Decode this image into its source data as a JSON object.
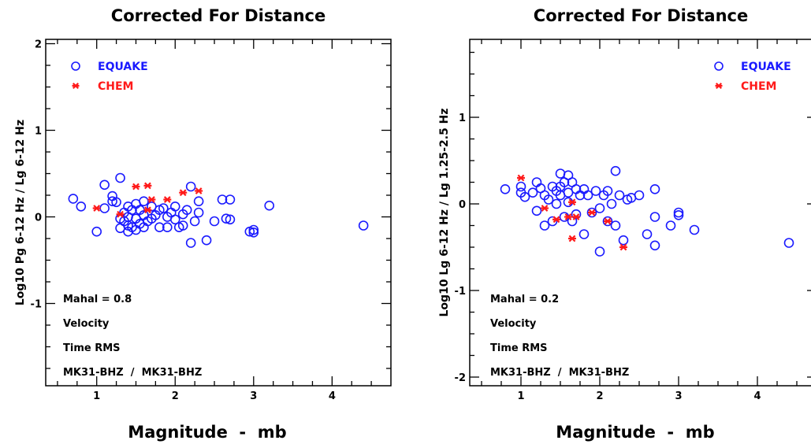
{
  "colors": {
    "equake": "#1a1aff",
    "chem": "#ff1a1a",
    "axis": "#000000"
  },
  "chart_data": [
    {
      "type": "scatter",
      "title": "Corrected For Distance",
      "xlabel": "Magnitude  -  mb",
      "ylabel": "Log10 Pg 6-12 Hz / Lg 6-12 Hz",
      "xlim": [
        0.35,
        4.75
      ],
      "ylim": [
        -1.95,
        2.05
      ],
      "xticks": [
        1,
        2,
        3,
        4
      ],
      "yticks": [
        -1,
        0,
        1,
        2
      ],
      "ytick_labels": [
        "-1",
        "0",
        "1",
        "2"
      ],
      "legend": [
        "EQUAKE",
        "CHEM"
      ],
      "legend_position": "top-left",
      "notes": [
        "Mahal = 0.8",
        "Velocity",
        "Time RMS",
        "MK31-BHZ  /  MK31-BHZ"
      ],
      "series": [
        {
          "name": "EQUAKE",
          "marker": "circle",
          "color": "#1a1aff",
          "points": [
            [
              0.7,
              0.21
            ],
            [
              0.8,
              0.12
            ],
            [
              1.0,
              -0.17
            ],
            [
              1.1,
              0.37
            ],
            [
              1.1,
              0.1
            ],
            [
              1.2,
              0.24
            ],
            [
              1.2,
              0.18
            ],
            [
              1.25,
              0.17
            ],
            [
              1.3,
              0.45
            ],
            [
              1.3,
              -0.02
            ],
            [
              1.3,
              -0.13
            ],
            [
              1.35,
              0.05
            ],
            [
              1.35,
              -0.05
            ],
            [
              1.4,
              0.12
            ],
            [
              1.4,
              0.0
            ],
            [
              1.4,
              -0.1
            ],
            [
              1.4,
              -0.17
            ],
            [
              1.45,
              0.08
            ],
            [
              1.45,
              -0.12
            ],
            [
              1.5,
              0.15
            ],
            [
              1.5,
              -0.02
            ],
            [
              1.5,
              -0.15
            ],
            [
              1.55,
              0.08
            ],
            [
              1.55,
              -0.08
            ],
            [
              1.6,
              0.18
            ],
            [
              1.6,
              0.02
            ],
            [
              1.6,
              -0.12
            ],
            [
              1.65,
              -0.05
            ],
            [
              1.7,
              0.12
            ],
            [
              1.7,
              -0.02
            ],
            [
              1.75,
              0.02
            ],
            [
              1.8,
              -0.12
            ],
            [
              1.8,
              0.08
            ],
            [
              1.85,
              0.1
            ],
            [
              1.9,
              0.0
            ],
            [
              1.9,
              -0.12
            ],
            [
              1.95,
              0.05
            ],
            [
              2.0,
              -0.03
            ],
            [
              2.0,
              0.12
            ],
            [
              2.05,
              -0.12
            ],
            [
              2.1,
              0.03
            ],
            [
              2.1,
              -0.1
            ],
            [
              2.15,
              0.08
            ],
            [
              2.2,
              0.35
            ],
            [
              2.2,
              -0.3
            ],
            [
              2.25,
              -0.05
            ],
            [
              2.3,
              0.18
            ],
            [
              2.3,
              0.05
            ],
            [
              2.4,
              -0.27
            ],
            [
              2.5,
              -0.05
            ],
            [
              2.6,
              0.2
            ],
            [
              2.65,
              -0.02
            ],
            [
              2.7,
              0.2
            ],
            [
              2.7,
              -0.03
            ],
            [
              2.95,
              -0.17
            ],
            [
              3.0,
              -0.15
            ],
            [
              3.0,
              -0.18
            ],
            [
              3.2,
              0.13
            ],
            [
              4.4,
              -0.1
            ]
          ]
        },
        {
          "name": "CHEM",
          "marker": "asterisk",
          "color": "#ff1a1a",
          "points": [
            [
              1.0,
              0.1
            ],
            [
              1.3,
              0.03
            ],
            [
              1.5,
              0.35
            ],
            [
              1.65,
              0.36
            ],
            [
              1.65,
              0.08
            ],
            [
              1.7,
              0.2
            ],
            [
              1.9,
              0.2
            ],
            [
              2.1,
              0.28
            ],
            [
              2.3,
              0.3
            ]
          ]
        }
      ]
    },
    {
      "type": "scatter",
      "title": "Corrected For Distance",
      "xlabel": "Magnitude  -  mb",
      "ylabel": "Log10 Lg 6-12 Hz / Lg 1.25-2.5 Hz",
      "xlim": [
        0.35,
        4.75
      ],
      "ylim": [
        -2.1,
        1.9
      ],
      "xticks": [
        1,
        2,
        3,
        4
      ],
      "yticks": [
        -2,
        -1,
        0,
        1
      ],
      "ytick_labels": [
        "-2",
        "-1",
        "0",
        "1"
      ],
      "legend": [
        "EQUAKE",
        "CHEM"
      ],
      "legend_position": "top-right",
      "notes": [
        "Mahal = 0.2",
        "Velocity",
        "Time RMS",
        "MK31-BHZ  /  MK31-BHZ"
      ],
      "series": [
        {
          "name": "EQUAKE",
          "marker": "circle",
          "color": "#1a1aff",
          "points": [
            [
              0.8,
              0.17
            ],
            [
              1.0,
              0.2
            ],
            [
              1.0,
              0.13
            ],
            [
              1.05,
              0.08
            ],
            [
              1.15,
              0.13
            ],
            [
              1.2,
              0.25
            ],
            [
              1.2,
              -0.08
            ],
            [
              1.25,
              0.18
            ],
            [
              1.3,
              0.1
            ],
            [
              1.3,
              -0.25
            ],
            [
              1.35,
              0.05
            ],
            [
              1.4,
              0.2
            ],
            [
              1.4,
              -0.2
            ],
            [
              1.45,
              0.15
            ],
            [
              1.45,
              0.0
            ],
            [
              1.5,
              0.35
            ],
            [
              1.5,
              0.2
            ],
            [
              1.5,
              0.1
            ],
            [
              1.55,
              0.25
            ],
            [
              1.55,
              -0.15
            ],
            [
              1.6,
              0.33
            ],
            [
              1.6,
              0.13
            ],
            [
              1.6,
              0.02
            ],
            [
              1.65,
              0.25
            ],
            [
              1.65,
              -0.2
            ],
            [
              1.7,
              0.17
            ],
            [
              1.7,
              -0.12
            ],
            [
              1.75,
              0.1
            ],
            [
              1.8,
              0.17
            ],
            [
              1.8,
              -0.35
            ],
            [
              1.85,
              0.1
            ],
            [
              1.9,
              -0.1
            ],
            [
              1.95,
              0.15
            ],
            [
              2.0,
              -0.05
            ],
            [
              2.0,
              -0.55
            ],
            [
              2.05,
              0.1
            ],
            [
              2.1,
              0.15
            ],
            [
              2.1,
              -0.2
            ],
            [
              2.15,
              0.0
            ],
            [
              2.2,
              -0.25
            ],
            [
              2.2,
              0.38
            ],
            [
              2.25,
              0.1
            ],
            [
              2.3,
              -0.42
            ],
            [
              2.35,
              0.05
            ],
            [
              2.4,
              0.07
            ],
            [
              2.5,
              0.1
            ],
            [
              2.6,
              -0.35
            ],
            [
              2.7,
              0.17
            ],
            [
              2.7,
              -0.15
            ],
            [
              2.7,
              -0.48
            ],
            [
              2.9,
              -0.25
            ],
            [
              3.0,
              -0.1
            ],
            [
              3.0,
              -0.13
            ],
            [
              3.2,
              -0.3
            ],
            [
              4.4,
              -0.45
            ]
          ]
        },
        {
          "name": "CHEM",
          "marker": "asterisk",
          "color": "#ff1a1a",
          "points": [
            [
              1.0,
              0.3
            ],
            [
              1.3,
              -0.05
            ],
            [
              1.45,
              -0.18
            ],
            [
              1.6,
              -0.15
            ],
            [
              1.65,
              -0.4
            ],
            [
              1.65,
              0.02
            ],
            [
              1.7,
              -0.15
            ],
            [
              1.9,
              -0.1
            ],
            [
              2.1,
              -0.2
            ],
            [
              2.3,
              -0.5
            ]
          ]
        }
      ]
    }
  ]
}
